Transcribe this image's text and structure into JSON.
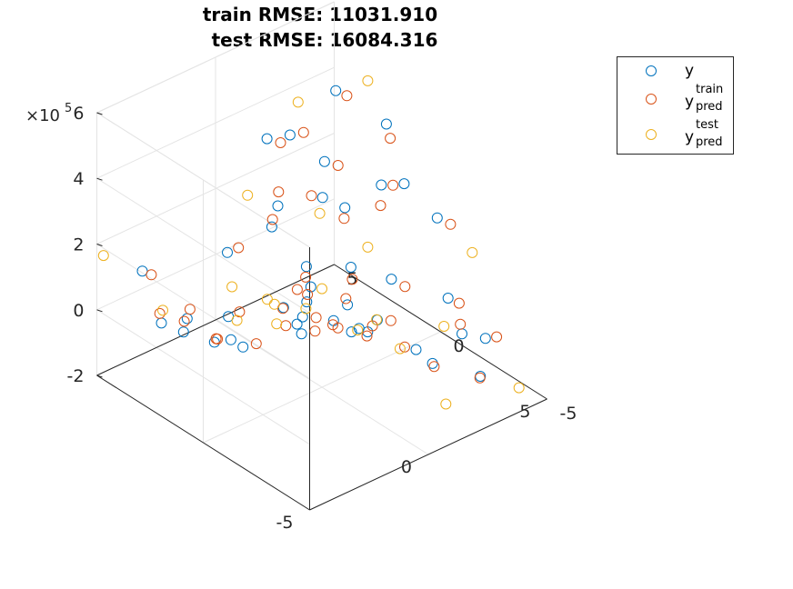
{
  "chart_data": {
    "type": "scatter",
    "title": [
      "train RMSE: 11031.910",
      "test RMSE: 16084.316"
    ],
    "xlim": [
      -5,
      5
    ],
    "ylim": [
      -5,
      5
    ],
    "zlim": [
      -200000,
      600000
    ],
    "x_ticks": [
      "-5",
      "0",
      "5"
    ],
    "y_ticks": [
      "-5",
      "0",
      "5"
    ],
    "z_ticks": [
      "-2",
      "0",
      "2",
      "4",
      "6"
    ],
    "z_exponent_base": "×10",
    "z_exponent": "5",
    "grid": true,
    "legend_placement": "top-right",
    "legend": [
      {
        "label": "y",
        "sub": "",
        "sup": "",
        "color": "#0072BD"
      },
      {
        "label": "y",
        "sub": "pred",
        "sup": "train",
        "color": "#D95319"
      },
      {
        "label": "y",
        "sub": "pred",
        "sup": "test",
        "color": "#EDB120"
      }
    ],
    "surface_model": "z ≈ 1e5 + 10000*x*y + 4000*x^2",
    "series": [
      {
        "name": "y",
        "color": "#0072BD",
        "points": [
          [
            -3.8,
            4.2,
            110000
          ],
          [
            -2.9,
            3.1,
            -20000
          ],
          [
            -1.7,
            2.5,
            -30000
          ],
          [
            -0.4,
            4.0,
            60000
          ],
          [
            1.1,
            3.3,
            180000
          ],
          [
            2.6,
            4.4,
            300000
          ],
          [
            3.9,
            3.7,
            420000
          ],
          [
            4.6,
            2.1,
            360000
          ],
          [
            3.4,
            1.0,
            260000
          ],
          [
            2.0,
            2.2,
            220000
          ],
          [
            0.6,
            1.4,
            90000
          ],
          [
            -0.9,
            0.8,
            40000
          ],
          [
            -2.4,
            1.6,
            -40000
          ],
          [
            -3.9,
            0.7,
            40000
          ],
          [
            -4.4,
            -1.2,
            120000
          ],
          [
            -3.1,
            -2.5,
            170000
          ],
          [
            -1.8,
            -1.1,
            120000
          ],
          [
            -0.5,
            -2.3,
            90000
          ],
          [
            0.9,
            -1.6,
            40000
          ],
          [
            2.3,
            -0.7,
            80000
          ],
          [
            3.7,
            -1.8,
            20000
          ],
          [
            4.5,
            -0.4,
            180000
          ],
          [
            1.7,
            -3.3,
            -50000
          ],
          [
            0.2,
            -4.2,
            80000
          ],
          [
            -1.3,
            -3.6,
            160000
          ],
          [
            -2.7,
            -4.4,
            240000
          ],
          [
            -4.1,
            -3.4,
            270000
          ],
          [
            3.0,
            -4.1,
            -100000
          ],
          [
            4.2,
            -3.0,
            -70000
          ],
          [
            1.4,
            0.2,
            110000
          ],
          [
            -0.2,
            0.3,
            100000
          ],
          [
            2.8,
            3.0,
            270000
          ],
          [
            4.0,
            0.6,
            260000
          ],
          [
            -3.5,
            2.6,
            -20000
          ],
          [
            -1.0,
            -0.4,
            110000
          ],
          [
            0.4,
            2.8,
            160000
          ],
          [
            3.3,
            -2.9,
            -30000
          ],
          [
            -2.2,
            -3.0,
            200000
          ],
          [
            1.9,
            4.7,
            300000
          ],
          [
            -4.7,
            2.3,
            60000
          ],
          [
            0.0,
            -1.2,
            100000
          ],
          [
            2.4,
            1.6,
            200000
          ]
        ]
      },
      {
        "name": "y_pred^train",
        "color": "#D95319",
        "points": [
          [
            -3.6,
            4.0,
            100000
          ],
          [
            -2.6,
            3.3,
            -10000
          ],
          [
            -1.5,
            2.2,
            -10000
          ],
          [
            -0.2,
            3.7,
            80000
          ],
          [
            1.4,
            3.6,
            200000
          ],
          [
            2.9,
            4.1,
            310000
          ],
          [
            4.1,
            3.4,
            410000
          ],
          [
            4.4,
            1.7,
            340000
          ],
          [
            3.1,
            0.7,
            220000
          ],
          [
            1.8,
            2.5,
            220000
          ],
          [
            0.3,
            1.1,
            80000
          ],
          [
            -1.2,
            0.5,
            60000
          ],
          [
            -2.7,
            1.9,
            -40000
          ],
          [
            -4.1,
            0.4,
            70000
          ],
          [
            -4.2,
            -1.6,
            140000
          ],
          [
            -2.8,
            -2.8,
            180000
          ],
          [
            -1.5,
            -1.4,
            120000
          ],
          [
            -0.2,
            -2.6,
            100000
          ],
          [
            1.2,
            -1.9,
            40000
          ],
          [
            2.6,
            -1.0,
            60000
          ],
          [
            3.9,
            -2.1,
            10000
          ],
          [
            4.7,
            -0.8,
            170000
          ],
          [
            1.5,
            -3.6,
            -40000
          ],
          [
            -0.1,
            -4.0,
            90000
          ],
          [
            -1.6,
            -3.9,
            170000
          ],
          [
            -3.0,
            -4.1,
            250000
          ],
          [
            -4.3,
            -3.1,
            260000
          ],
          [
            2.8,
            -4.3,
            -90000
          ],
          [
            4.4,
            -3.3,
            -60000
          ],
          [
            1.1,
            -0.2,
            100000
          ],
          [
            -0.5,
            0.6,
            90000
          ],
          [
            3.1,
            2.7,
            260000
          ],
          [
            3.8,
            0.9,
            250000
          ],
          [
            -3.2,
            2.9,
            -10000
          ],
          [
            -0.7,
            -0.1,
            110000
          ],
          [
            0.7,
            3.1,
            160000
          ],
          [
            3.5,
            -2.6,
            -20000
          ],
          [
            -2.5,
            -3.3,
            210000
          ],
          [
            2.2,
            4.4,
            290000
          ],
          [
            -4.5,
            2.6,
            70000
          ],
          [
            0.2,
            -0.9,
            100000
          ],
          [
            2.1,
            1.3,
            190000
          ]
        ]
      },
      {
        "name": "y_pred^test",
        "color": "#EDB120",
        "points": [
          [
            -4.9,
            4.8,
            170000
          ],
          [
            -3.3,
            3.8,
            -10000
          ],
          [
            -1.1,
            3.0,
            20000
          ],
          [
            0.9,
            4.5,
            170000
          ],
          [
            3.3,
            4.8,
            360000
          ],
          [
            4.8,
            3.2,
            440000
          ],
          [
            2.2,
            0.3,
            140000
          ],
          [
            -0.6,
            1.9,
            10000
          ],
          [
            -3.4,
            0.2,
            110000
          ],
          [
            -3.7,
            -2.0,
            200000
          ],
          [
            -1.1,
            -2.9,
            130000
          ],
          [
            0.6,
            -3.0,
            20000
          ],
          [
            2.9,
            -2.5,
            -10000
          ],
          [
            4.9,
            -1.6,
            110000
          ],
          [
            1.1,
            -4.6,
            -100000
          ],
          [
            -2.0,
            -4.8,
            270000
          ],
          [
            4.0,
            -4.8,
            -140000
          ],
          [
            -4.8,
            -4.6,
            390000
          ],
          [
            0.0,
            0.0,
            100000
          ],
          [
            1.7,
            2.0,
            190000
          ],
          [
            -2.0,
            0.0,
            120000
          ]
        ]
      }
    ]
  }
}
